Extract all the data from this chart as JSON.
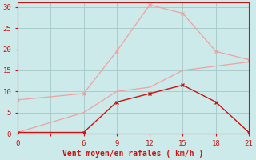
{
  "bg_color": "#cceaea",
  "grid_color": "#aacccc",
  "line_dark_color": "#cc1111",
  "line_light_color": "#f0a0a0",
  "x_dark": [
    0,
    6,
    9,
    12,
    15,
    18,
    21
  ],
  "y_dark": [
    0.3,
    0.3,
    7.5,
    9.5,
    11.5,
    7.5,
    0.3
  ],
  "x_light_top": [
    0,
    6,
    9,
    12,
    15,
    18,
    21
  ],
  "y_light_top": [
    8,
    9.5,
    19.5,
    30.5,
    28.5,
    19.5,
    17.5
  ],
  "x_light_mid": [
    0,
    6,
    9,
    12,
    15,
    18,
    21
  ],
  "y_light_mid": [
    0.3,
    5,
    10,
    11,
    15,
    16,
    17
  ],
  "xlabel": "Vent moyen/en rafales ( km/h )",
  "xlim": [
    0,
    21
  ],
  "ylim": [
    0,
    31
  ],
  "xticks_major": [
    0,
    3,
    6,
    9,
    12,
    15,
    18,
    21
  ],
  "xtick_labels": [
    "0",
    "",
    "6",
    "9",
    "12",
    "15",
    "18",
    "21"
  ],
  "yticks": [
    0,
    5,
    10,
    15,
    20,
    25,
    30
  ],
  "xlabel_color": "#cc1111",
  "tick_color": "#cc1111",
  "spine_color": "#cc1111"
}
